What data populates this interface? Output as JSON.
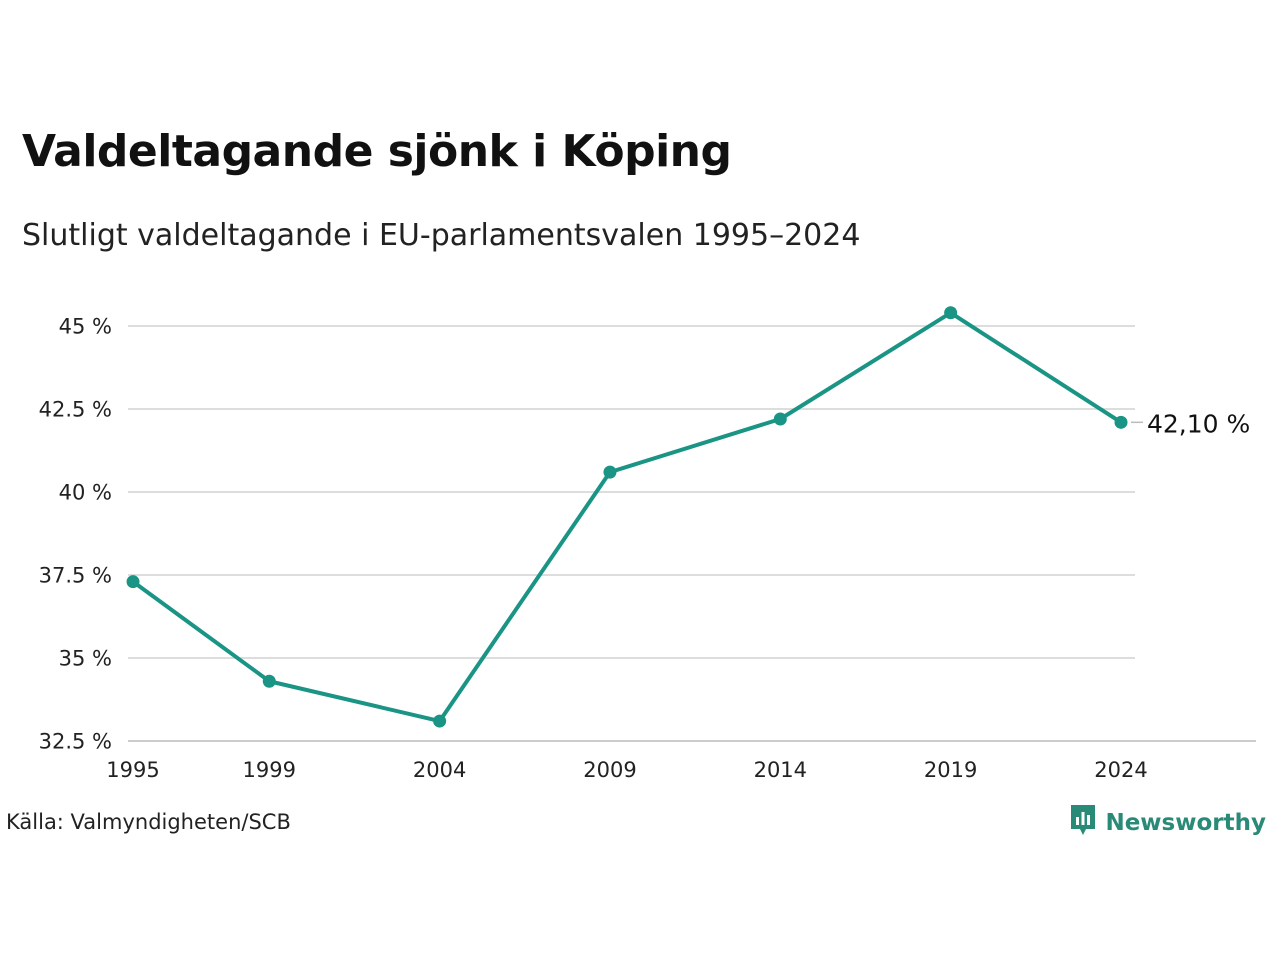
{
  "title": "Valdeltagande sjönk i Köping",
  "subtitle": "Slutligt valdeltagande i EU-parlamentsvalen 1995–2024",
  "source": "Källa: Valmyndigheten/SCB",
  "brand": {
    "name": "Newsworthy",
    "icon": "newsworthy-logo-icon"
  },
  "colors": {
    "line": "#1a9484",
    "grid": "#dddddd",
    "brand": "#2a8a78"
  },
  "chart_data": {
    "type": "line",
    "categories": [
      "1995",
      "1999",
      "2004",
      "2009",
      "2014",
      "2019",
      "2024"
    ],
    "series": [
      {
        "values": [
          37.3,
          34.3,
          33.1,
          40.6,
          42.2,
          45.4,
          42.1
        ]
      }
    ],
    "yticks": [
      32.5,
      35,
      37.5,
      40,
      42.5,
      45
    ],
    "ytick_labels": [
      "32.5 %",
      "35 %",
      "37.5 %",
      "40 %",
      "42.5 %",
      "45 %"
    ],
    "ylim": [
      32.5,
      45.8
    ],
    "end_label": "42,10 %",
    "grid": true,
    "legend": "none"
  }
}
